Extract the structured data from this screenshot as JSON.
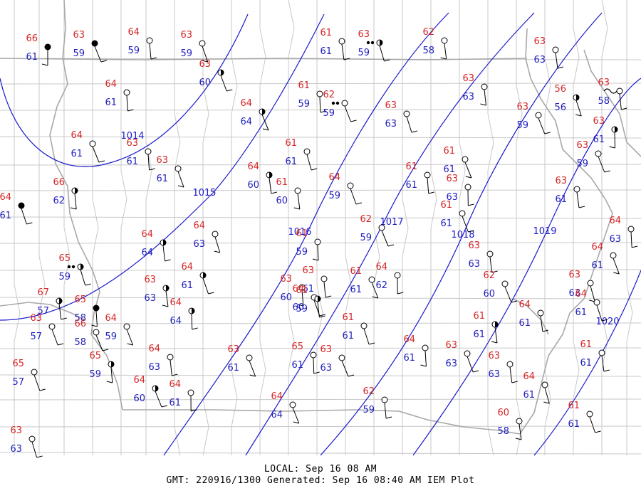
{
  "footer": {
    "local": "LOCAL: Sep 16 08 AM",
    "gmt": "GMT: 220916/1300 Generated: Sep 16 08:40 AM IEM Plot"
  },
  "colors": {
    "temperature": "#d62728",
    "dewpoint": "#1f1fbf",
    "isobar": "#1a1acc",
    "county_border": "#c8c8c8",
    "state_border": "#a8a8a8",
    "station": "#000000"
  },
  "isobars": [
    {
      "label": "1014"
    },
    {
      "label": "1015"
    },
    {
      "label": "1016"
    },
    {
      "label": "1017"
    },
    {
      "label": "1018"
    },
    {
      "label": "1019"
    },
    {
      "label": "1020"
    }
  ],
  "stations": [
    {
      "t": "66",
      "d": "61",
      "sky": "ovc"
    },
    {
      "t": "63",
      "d": "59",
      "sky": "ovc"
    },
    {
      "t": "64",
      "d": "59",
      "sky": "clr"
    },
    {
      "t": "63",
      "d": "59",
      "sky": "clr"
    },
    {
      "t": "61",
      "d": "61",
      "sky": "clr"
    },
    {
      "t": "63",
      "d": "59",
      "sky": "half",
      "wx": "fog"
    },
    {
      "t": "62",
      "d": "58",
      "sky": "clr"
    },
    {
      "t": "63",
      "d": "60",
      "sky": "half"
    },
    {
      "t": "64",
      "d": "61",
      "sky": "clr"
    },
    {
      "t": "64",
      "d": "64",
      "sky": "half"
    },
    {
      "t": "61",
      "d": "59",
      "sky": "clr"
    },
    {
      "t": "62",
      "d": "59",
      "sky": "clr",
      "wx": "fog"
    },
    {
      "t": "63",
      "d": "63",
      "sky": "clr"
    },
    {
      "t": "63",
      "d": "63",
      "sky": "clr"
    },
    {
      "t": "63",
      "d": "63",
      "sky": "clr"
    },
    {
      "t": "56",
      "d": "56",
      "sky": "half"
    },
    {
      "t": "63",
      "d": "58",
      "sky": "clr",
      "wx": "haze"
    },
    {
      "t": "63",
      "d": "59",
      "sky": "clr"
    },
    {
      "t": "63",
      "d": "61",
      "sky": "half"
    },
    {
      "t": "64",
      "d": "61",
      "sky": "clr"
    },
    {
      "t": "63",
      "d": "61",
      "sky": "clr"
    },
    {
      "t": "63",
      "d": "61",
      "sky": "clr"
    },
    {
      "t": "64",
      "d": "60",
      "sky": "half"
    },
    {
      "t": "61",
      "d": "61",
      "sky": "clr"
    },
    {
      "t": "61",
      "d": "60",
      "sky": "clr"
    },
    {
      "t": "64",
      "d": "59",
      "sky": "clr"
    },
    {
      "t": "61",
      "d": "61",
      "sky": "clr"
    },
    {
      "t": "61",
      "d": "61",
      "sky": "clr"
    },
    {
      "t": "63",
      "d": "63",
      "sky": "clr"
    },
    {
      "t": "63",
      "d": "59",
      "sky": "clr"
    },
    {
      "t": "66",
      "d": "62",
      "sky": "half"
    },
    {
      "t": "64",
      "d": "61",
      "sky": "ovc"
    },
    {
      "t": "63",
      "d": "61",
      "sky": "clr"
    },
    {
      "t": "64",
      "d": "63",
      "sky": "clr"
    },
    {
      "t": "64",
      "d": "64",
      "sky": "half"
    },
    {
      "t": "61",
      "d": "61",
      "sky": "clr"
    },
    {
      "t": "61",
      "d": "59",
      "sky": "clr"
    },
    {
      "t": "62",
      "d": "59",
      "sky": "clr"
    },
    {
      "t": "64",
      "d": "63",
      "sky": "clr"
    },
    {
      "t": "64",
      "d": "61",
      "sky": "clr"
    },
    {
      "t": "63",
      "d": "63",
      "sky": "clr"
    },
    {
      "t": "65",
      "d": "59",
      "sky": "half",
      "wx": "fog"
    },
    {
      "t": "63",
      "d": "63",
      "sky": "half"
    },
    {
      "t": "64",
      "d": "61",
      "sky": "half"
    },
    {
      "t": "63",
      "d": "61",
      "sky": "clr"
    },
    {
      "t": "61",
      "d": "61",
      "sky": "clr"
    },
    {
      "t": "64",
      "d": "62",
      "sky": "clr"
    },
    {
      "t": "62",
      "d": "60",
      "sky": "clr"
    },
    {
      "t": "63",
      "d": "60",
      "sky": "clr"
    },
    {
      "t": "64",
      "d": "60",
      "sky": "clr"
    },
    {
      "t": "64",
      "d": "61",
      "sky": "clr"
    },
    {
      "t": "63",
      "d": "63",
      "sky": "clr"
    },
    {
      "t": "67",
      "d": "57",
      "sky": "half"
    },
    {
      "t": "63",
      "d": "57",
      "sky": "clr"
    },
    {
      "t": "65",
      "d": "58",
      "sky": "ovc"
    },
    {
      "t": "66",
      "d": "58",
      "sky": "clr"
    },
    {
      "t": "64",
      "d": "64",
      "sky": "half"
    },
    {
      "t": "64",
      "d": "59",
      "sky": "clr"
    },
    {
      "t": "61",
      "d": "59",
      "sky": "half"
    },
    {
      "t": "64",
      "d": "61",
      "sky": "clr"
    },
    {
      "t": "61",
      "d": "61",
      "sky": "half"
    },
    {
      "t": "61",
      "d": "61",
      "sky": "clr"
    },
    {
      "t": "64",
      "d": "63",
      "sky": "clr"
    },
    {
      "t": "63",
      "d": "61",
      "sky": "clr"
    },
    {
      "t": "65",
      "d": "61",
      "sky": "clr"
    },
    {
      "t": "63",
      "d": "63",
      "sky": "clr"
    },
    {
      "t": "64",
      "d": "61",
      "sky": "clr"
    },
    {
      "t": "63",
      "d": "63",
      "sky": "clr"
    },
    {
      "t": "63",
      "d": "63",
      "sky": "clr"
    },
    {
      "t": "64",
      "d": "61",
      "sky": "clr"
    },
    {
      "t": "61",
      "d": "61",
      "sky": "clr"
    },
    {
      "t": "65",
      "d": "57",
      "sky": "clr"
    },
    {
      "t": "65",
      "d": "59",
      "sky": "half"
    },
    {
      "t": "64",
      "d": "60",
      "sky": "half"
    },
    {
      "t": "64",
      "d": "61",
      "sky": "clr"
    },
    {
      "t": "64",
      "d": "64",
      "sky": "clr"
    },
    {
      "t": "62",
      "d": "59",
      "sky": "clr"
    },
    {
      "t": "61",
      "d": "61",
      "sky": "clr"
    },
    {
      "t": "60",
      "d": "58",
      "sky": "clr"
    },
    {
      "t": "63",
      "d": "63",
      "sky": "clr"
    },
    {
      "t": "67",
      "d": "57",
      "sky": "clr"
    },
    {
      "t": "63",
      "d": "63",
      "sky": "clr"
    },
    {
      "t": "63",
      "d": "61",
      "sky": "clr"
    },
    {
      "t": "64",
      "d": "61",
      "sky": "ovc"
    },
    {
      "t": "64",
      "d": "61",
      "sky": "clr"
    }
  ]
}
